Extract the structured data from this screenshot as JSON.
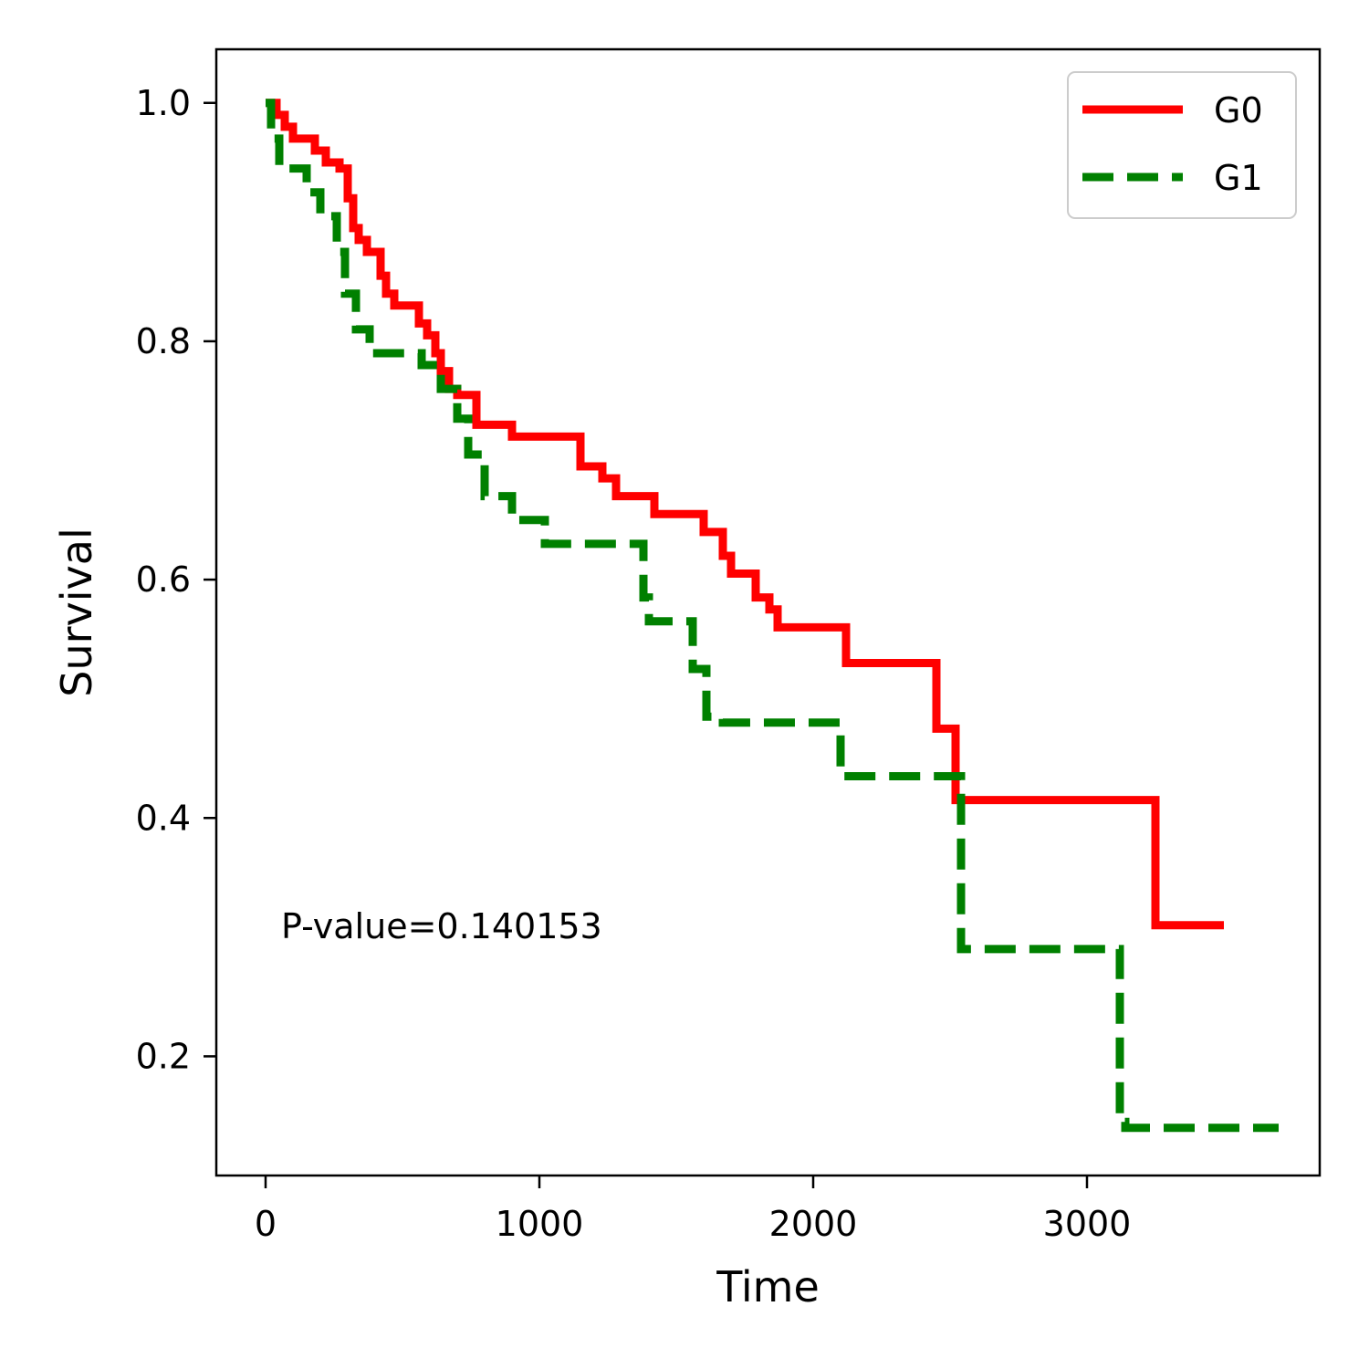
{
  "chart_data": {
    "type": "line",
    "step": true,
    "title": "",
    "xlabel": "Time",
    "ylabel": "Survival",
    "xlim": [
      -180,
      3850
    ],
    "ylim": [
      0.1,
      1.045
    ],
    "xticks": [
      0,
      1000,
      2000,
      3000
    ],
    "xtick_labels": [
      "0",
      "1000",
      "2000",
      "3000"
    ],
    "yticks": [
      0.2,
      0.4,
      0.6,
      0.8,
      1.0
    ],
    "ytick_labels": [
      "0.2",
      "0.4",
      "0.6",
      "0.8",
      "1.0"
    ],
    "grid": false,
    "legend_position": "top-right",
    "annotation": "P-value=0.140153",
    "series": [
      {
        "name": "G0",
        "color": "#ff0000",
        "style": "solid",
        "x": [
          0,
          40,
          70,
          100,
          180,
          220,
          270,
          300,
          320,
          340,
          370,
          420,
          440,
          470,
          560,
          590,
          620,
          640,
          670,
          700,
          770,
          900,
          1150,
          1230,
          1280,
          1420,
          1600,
          1670,
          1700,
          1790,
          1840,
          1870,
          2120,
          2450,
          2520,
          3250,
          3500
        ],
        "y": [
          1.0,
          0.99,
          0.98,
          0.97,
          0.96,
          0.95,
          0.945,
          0.92,
          0.895,
          0.885,
          0.875,
          0.855,
          0.84,
          0.83,
          0.815,
          0.805,
          0.79,
          0.775,
          0.76,
          0.755,
          0.73,
          0.72,
          0.695,
          0.685,
          0.67,
          0.655,
          0.64,
          0.62,
          0.605,
          0.585,
          0.575,
          0.56,
          0.53,
          0.475,
          0.415,
          0.31,
          0.31
        ]
      },
      {
        "name": "G1",
        "color": "#008000",
        "style": "dashed",
        "x": [
          0,
          20,
          50,
          150,
          200,
          260,
          290,
          330,
          380,
          440,
          510,
          570,
          640,
          700,
          740,
          800,
          900,
          1020,
          1380,
          1400,
          1560,
          1600,
          1610,
          1620,
          1670,
          2100,
          2540,
          2560,
          3120,
          3140,
          3700
        ],
        "y": [
          1.0,
          0.97,
          0.945,
          0.925,
          0.905,
          0.875,
          0.84,
          0.81,
          0.79,
          0.79,
          0.79,
          0.78,
          0.76,
          0.735,
          0.705,
          0.67,
          0.65,
          0.63,
          0.585,
          0.565,
          0.525,
          0.525,
          0.485,
          0.485,
          0.48,
          0.435,
          0.29,
          0.29,
          0.145,
          0.14,
          0.14
        ]
      }
    ]
  }
}
